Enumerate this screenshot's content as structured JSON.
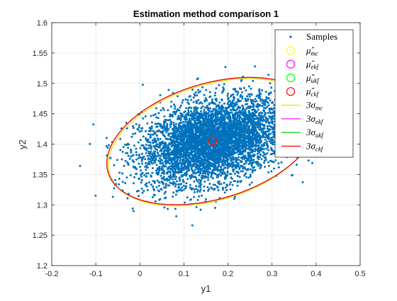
{
  "chart_data": {
    "type": "scatter",
    "title": "Estimation method comparison 1",
    "xlabel": "y1",
    "ylabel": "y2",
    "xlim": [
      -0.2,
      0.5
    ],
    "ylim": [
      1.2,
      1.6
    ],
    "xticks": [
      "-0.2",
      "-0.1",
      "0",
      "0.1",
      "0.2",
      "0.3",
      "0.4",
      "0.5"
    ],
    "yticks": [
      "1.2",
      "1.25",
      "1.3",
      "1.35",
      "1.4",
      "1.45",
      "1.5",
      "1.55",
      "1.6"
    ],
    "grid": true,
    "legend_position": "top-right",
    "samples": {
      "name": "Samples",
      "color": "#0072BD",
      "count": 5000,
      "mean": [
        0.165,
        1.405
      ],
      "std": [
        0.08,
        0.035
      ],
      "correlation": 0.35
    },
    "means": [
      {
        "name": "μ̂_mc",
        "label_main": "μ̂",
        "label_sub": "mc",
        "color": "#FFFF00",
        "x": 0.165,
        "y": 1.405
      },
      {
        "name": "μ̂_ekf",
        "label_main": "μ̂",
        "label_sub": "ekf",
        "color": "#FF00FF",
        "x": 0.165,
        "y": 1.405
      },
      {
        "name": "μ̂_ukf",
        "label_main": "μ̂",
        "label_sub": "ukf",
        "color": "#00FF00",
        "x": 0.165,
        "y": 1.405
      },
      {
        "name": "μ̂_ckf",
        "label_main": "μ̂",
        "label_sub": "ckf",
        "color": "#FF0000",
        "x": 0.165,
        "y": 1.405
      }
    ],
    "ellipses": [
      {
        "name": "3σ_mc",
        "label_main": "3σ",
        "label_sub": "mc",
        "color": "#EDDD00",
        "center": [
          0.165,
          1.403
        ],
        "cov": [
          [
            0.00622,
            0.00097
          ],
          [
            0.00097,
            0.00122
          ]
        ]
      },
      {
        "name": "3σ_ekf",
        "label_main": "3σ",
        "label_sub": "ekf",
        "color": "#FF00FF",
        "center": [
          0.165,
          1.405
        ],
        "cov": [
          [
            0.0064,
            0.00098
          ],
          [
            0.00098,
            0.00122
          ]
        ]
      },
      {
        "name": "3σ_ukf",
        "label_main": "3σ",
        "label_sub": "ukf",
        "color": "#00CC00",
        "center": [
          0.165,
          1.405
        ],
        "cov": [
          [
            0.0064,
            0.00098
          ],
          [
            0.00098,
            0.00122
          ]
        ]
      },
      {
        "name": "3σ_ckf",
        "label_main": "3σ",
        "label_sub": "ckf",
        "color": "#FF0000",
        "center": [
          0.165,
          1.405
        ],
        "cov": [
          [
            0.0064,
            0.00098
          ],
          [
            0.00098,
            0.00122
          ]
        ]
      }
    ]
  }
}
